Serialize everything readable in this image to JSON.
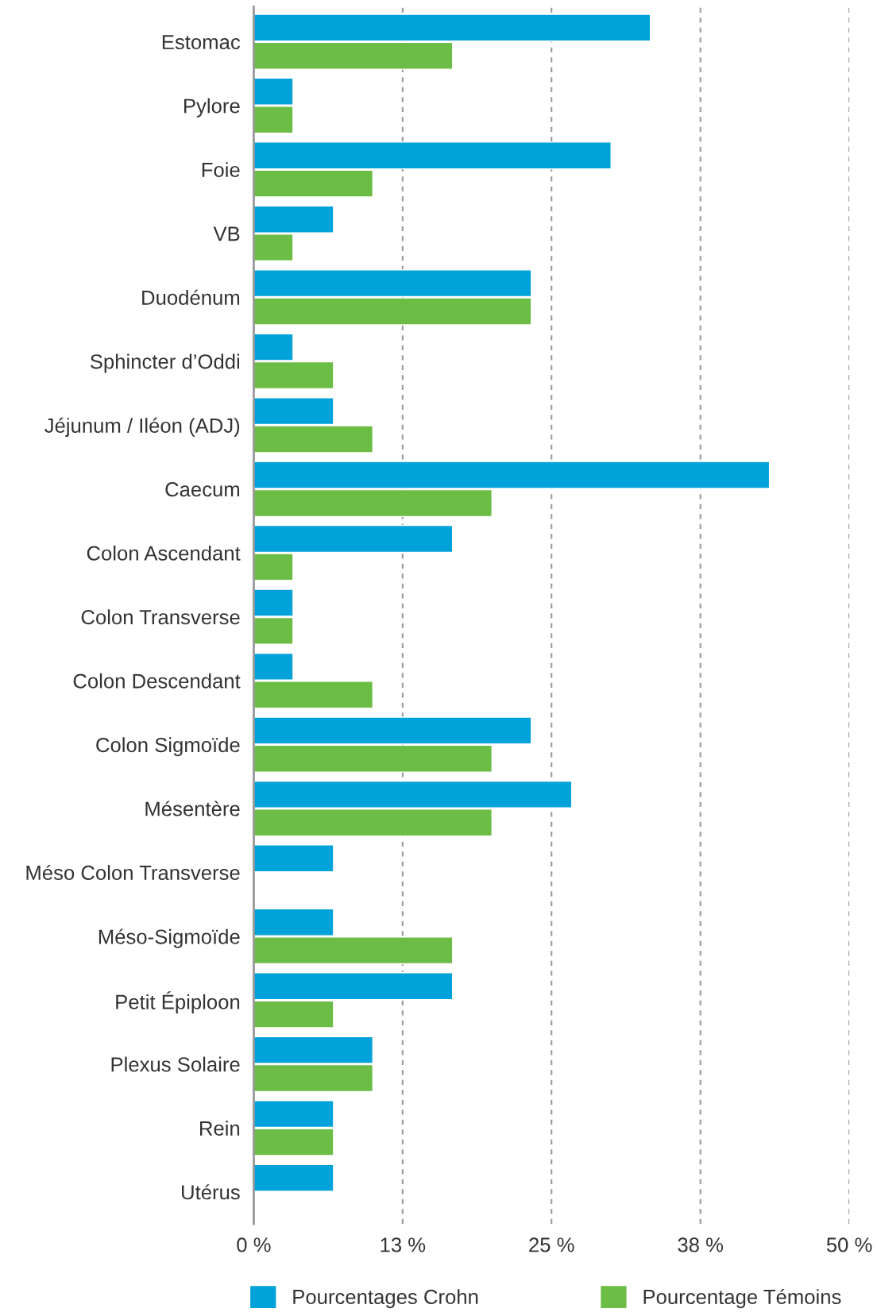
{
  "chart_data": {
    "type": "bar",
    "orientation": "horizontal",
    "categories": [
      "Estomac",
      "Pylore",
      "Foie",
      "VB",
      "Duodénum",
      "Sphincter d’Oddi",
      "Jéjunum / Iléon (ADJ)",
      "Caecum",
      "Colon Ascendant",
      "Colon Transverse",
      "Colon Descendant",
      "Colon Sigmoïde",
      "Mésentère",
      "Méso Colon Transverse",
      "Méso-Sigmoïde",
      "Petit Épiploon",
      "Plexus Solaire",
      "Rein",
      "Utérus"
    ],
    "series": [
      {
        "name": "Pourcentages Crohn",
        "color": "#00a2d9",
        "values": [
          33.3,
          3.3,
          30,
          6.7,
          23.3,
          3.3,
          6.7,
          43.3,
          16.7,
          3.3,
          3.3,
          23.3,
          26.7,
          6.7,
          6.7,
          16.7,
          10,
          6.7,
          6.7
        ]
      },
      {
        "name": "Pourcentage Témoins",
        "color": "#6cbd45",
        "values": [
          16.7,
          3.3,
          10,
          3.3,
          23.3,
          6.7,
          10,
          20,
          3.3,
          3.3,
          10,
          20,
          20,
          null,
          16.7,
          6.7,
          10,
          6.7,
          null
        ]
      }
    ],
    "xlim": [
      0,
      50
    ],
    "xticks": [
      {
        "value": 0,
        "label": "0 %"
      },
      {
        "value": 12.5,
        "label": "13 %"
      },
      {
        "value": 25,
        "label": "25 %"
      },
      {
        "value": 37.5,
        "label": "38 %"
      },
      {
        "value": 50,
        "label": "50 %"
      }
    ],
    "grid": "x",
    "legend": "bottom"
  }
}
